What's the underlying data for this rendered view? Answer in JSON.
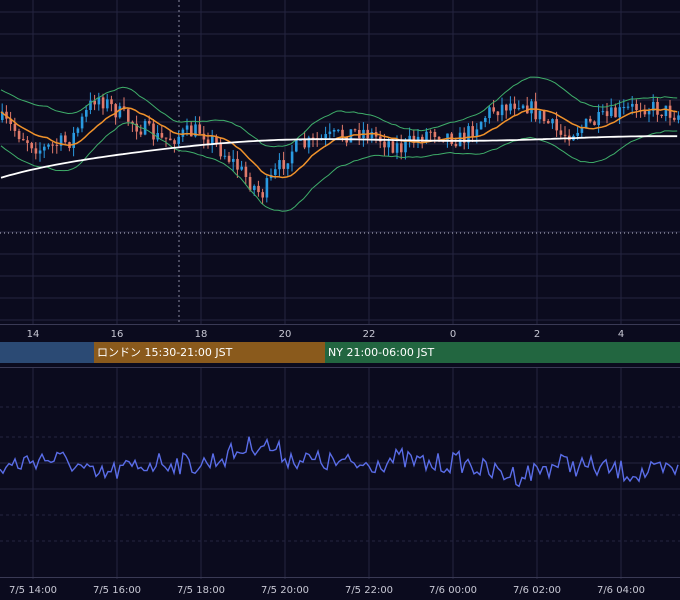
{
  "main_x_axis": [
    "14",
    "16",
    "18",
    "20",
    "22",
    "0",
    "2",
    "4"
  ],
  "sessions": [
    {
      "label": "",
      "color": "#2b4a74"
    },
    {
      "label": "ロンドン 15:30-21:00 JST",
      "color": "#8a5a1c"
    },
    {
      "label": "NY 21:00-06:00 JST",
      "color": "#226640"
    }
  ],
  "bottom_x_axis": [
    "7/5 14:00",
    "7/5 16:00",
    "7/5 18:00",
    "7/5 20:00",
    "7/5 22:00",
    "7/6 00:00",
    "7/6 02:00",
    "7/6 04:00"
  ],
  "colors": {
    "background": "#0b0b1e",
    "grid": "#252540",
    "candle_up": "#2a9ae0",
    "candle_down": "#e07a6a",
    "ma_fast": "#f0922b",
    "ma_slow": "#ffffff",
    "bollinger": "#3fae6a",
    "oscillator": "#5a6de8"
  }
}
